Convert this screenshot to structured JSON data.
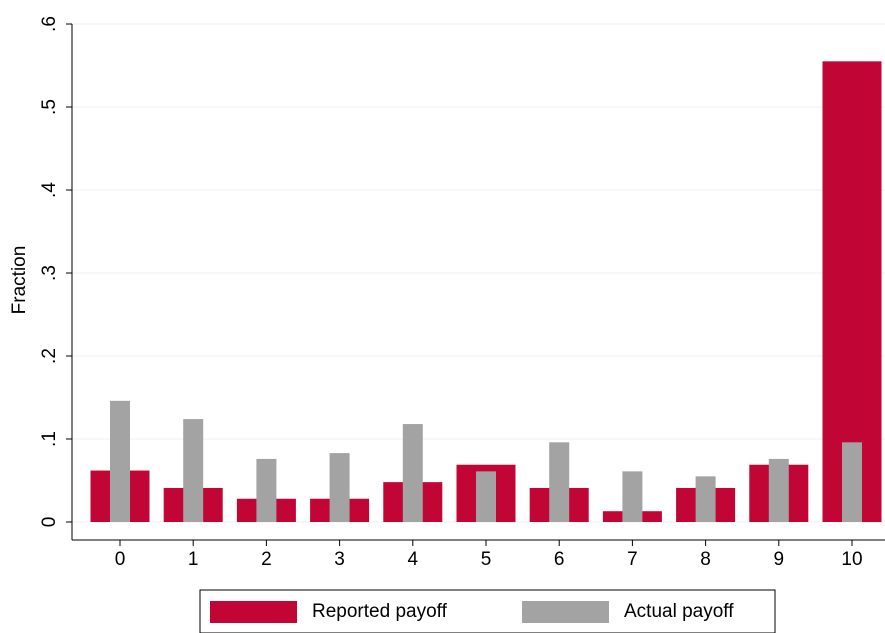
{
  "chart_data": {
    "type": "bar",
    "y_label": "Fraction",
    "categories": [
      "0",
      "1",
      "2",
      "3",
      "4",
      "5",
      "6",
      "7",
      "8",
      "9",
      "10"
    ],
    "series": [
      {
        "name": "Reported payoff",
        "color": "#c10534",
        "values": [
          0.062,
          0.041,
          0.028,
          0.028,
          0.048,
          0.069,
          0.041,
          0.013,
          0.041,
          0.069,
          0.555
        ]
      },
      {
        "name": "Actual payoff",
        "color": "#a3a3a3",
        "values": [
          0.146,
          0.124,
          0.076,
          0.083,
          0.118,
          0.061,
          0.096,
          0.061,
          0.055,
          0.076,
          0.096
        ]
      }
    ],
    "ylim": [
      0,
      0.6
    ],
    "yticks": [
      0,
      {
        "value": 0.1,
        "label": ".1"
      },
      {
        "value": 0.2,
        "label": ".2"
      },
      {
        "value": 0.3,
        "label": ".3"
      },
      {
        "value": 0.4,
        "label": ".4"
      },
      {
        "value": 0.5,
        "label": ".5"
      },
      {
        "value": 0.6,
        "label": ".6"
      }
    ],
    "grid": true,
    "legend": "bottom"
  }
}
